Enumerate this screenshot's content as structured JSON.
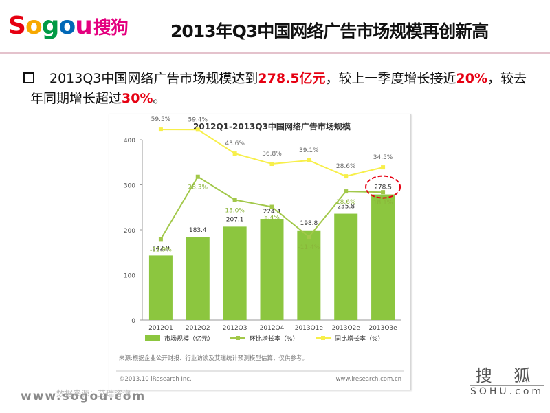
{
  "header": {
    "logo_prefix": "Sogou",
    "logo_cn": "搜狗",
    "logo_colors": [
      "#e60012",
      "#f7a800",
      "#009a44",
      "#0068b7",
      "#e4007f"
    ],
    "title": "2013年Q3中国网络广告市场规模再创新高"
  },
  "bullet": {
    "t1": "2013Q3中国网络广告市场规模达到",
    "h1": "278.5亿元",
    "t2": "，较上一季度增长接近",
    "h2": "20%",
    "t3": "，较去年同期增长超过",
    "h3": "30%",
    "t4": "。"
  },
  "chart_data": {
    "type": "bar",
    "title": "2012Q1-2013Q3中国网络广告市场规模",
    "categories": [
      "2012Q1",
      "2012Q2",
      "2012Q3",
      "2012Q4",
      "2013Q1e",
      "2013Q2e",
      "2013Q3e"
    ],
    "ylim": [
      0,
      400
    ],
    "yticks": [
      0,
      100,
      200,
      300,
      400
    ],
    "grid": false,
    "legend_position": "bottom",
    "series": [
      {
        "name": "市场规模（亿元）",
        "type": "bar",
        "color": "#8cc63f",
        "values": [
          142.9,
          183.4,
          207.1,
          224.4,
          198.8,
          235.8,
          278.5
        ],
        "labels": [
          "142.9",
          "183.4",
          "207.1",
          "224.4",
          "198.8",
          "235.8",
          "278.5"
        ]
      },
      {
        "name": "环比增长率（%）",
        "type": "line",
        "color": "#a2c84a",
        "values": [
          -12.9,
          28.3,
          13.0,
          8.4,
          -11.4,
          18.6,
          18.1
        ],
        "labels": [
          "-12.9%",
          "28.3%",
          "13.0%",
          "8.4%",
          "-11.4%",
          "18.6%",
          "18.1%"
        ]
      },
      {
        "name": "同比增长率（%）",
        "type": "line",
        "color": "#f7ef4a",
        "values": [
          59.5,
          59.4,
          43.6,
          36.8,
          39.1,
          28.6,
          34.5
        ],
        "labels": [
          "59.5%",
          "59.4%",
          "43.6%",
          "36.8%",
          "39.1%",
          "28.6%",
          "34.5%"
        ]
      }
    ],
    "highlight": {
      "category": "2013Q3e",
      "color": "#e60012"
    },
    "source_note": "来源:根据企业公开财报、行业访谈及艾瑞统计预测模型估算，仅供参考。",
    "copyright": "©2013.10 iResearch Inc.",
    "website": "www.iresearch.com.cn"
  },
  "footer": {
    "url": "www.sogou.com",
    "cn_text": "数据来源：艾瑞咨询",
    "sohu_cn": "搜 狐",
    "sohu_en": "SOHU.com"
  }
}
